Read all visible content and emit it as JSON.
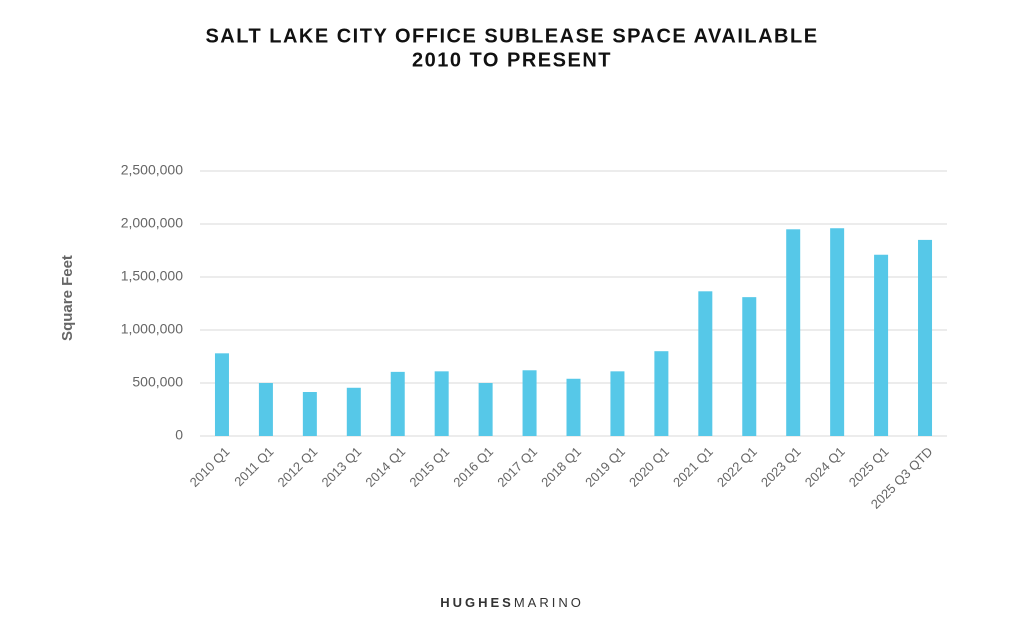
{
  "chart_data": {
    "type": "bar",
    "title": "SALT LAKE CITY OFFICE SUBLEASE SPACE AVAILABLE",
    "subtitle": "2010 TO PRESENT",
    "y_label": "Square Feet",
    "categories": [
      "2010 Q1",
      "2011 Q1",
      "2012 Q1",
      "2013 Q1",
      "2014 Q1",
      "2015 Q1",
      "2016 Q1",
      "2017 Q1",
      "2018 Q1",
      "2019 Q1",
      "2020 Q1",
      "2021 Q1",
      "2022 Q1",
      "2023 Q1",
      "2024 Q1",
      "2025 Q1",
      "2025 Q3 QTD"
    ],
    "values": [
      780000,
      500000,
      415000,
      455000,
      605000,
      610000,
      500000,
      620000,
      540000,
      610000,
      800000,
      1365000,
      1310000,
      1950000,
      1960000,
      1710000,
      1850000
    ],
    "color": "#56c8e8",
    "ylim": [
      0,
      2500000
    ],
    "yticks": [
      0,
      {
        "value": 500000,
        "label": "500,000"
      },
      {
        "value": 1000000,
        "label": "1,000,000"
      },
      {
        "value": 1500000,
        "label": "1,500,000"
      },
      {
        "value": 2000000,
        "label": "2,000,000"
      },
      {
        "value": 2500000,
        "label": "2,500,000"
      }
    ],
    "grid": true
  },
  "footer": {
    "brand_bold": "HUGHES",
    "brand_light": "MARINO"
  }
}
